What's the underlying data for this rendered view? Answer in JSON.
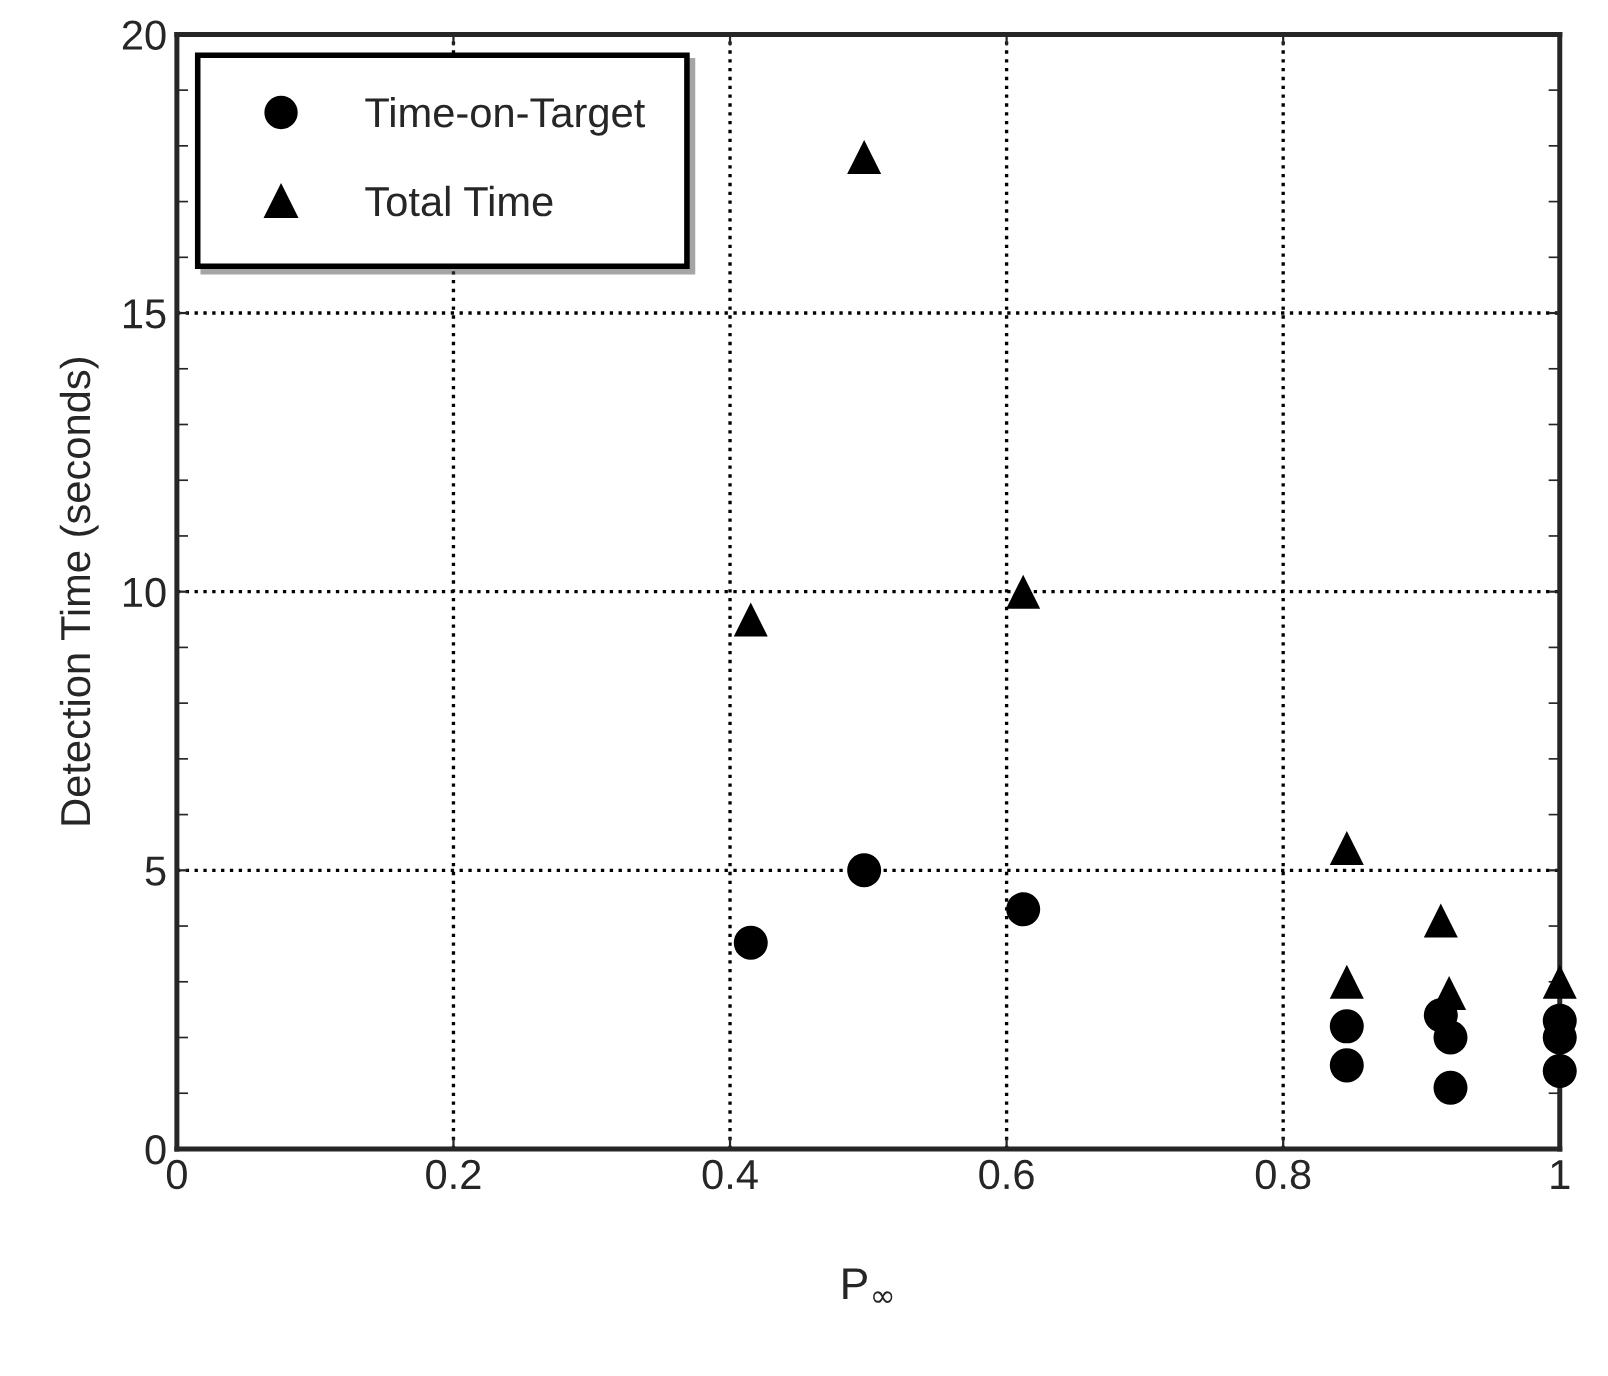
{
  "chart_data": {
    "type": "scatter",
    "xlabel": "P$_{∞}$",
    "ylabel": "Detection Time (seconds)",
    "series": [
      {
        "name": "Time-on-Target",
        "color": "#000000",
        "marker": "circle",
        "x": [
          0.415,
          0.497,
          0.612,
          0.846,
          0.846,
          0.914,
          0.921,
          0.921,
          1.0,
          1.0,
          1.0
        ],
        "values": [
          3.7,
          5.0,
          4.3,
          2.2,
          1.5,
          2.4,
          2.0,
          1.1,
          2.3,
          2.0,
          1.4
        ]
      },
      {
        "name": "Total Time",
        "color": "#000000",
        "marker": "triangle",
        "x": [
          0.415,
          0.497,
          0.612,
          0.846,
          0.846,
          0.914,
          0.92,
          1.0
        ],
        "values": [
          9.5,
          17.8,
          10.0,
          5.4,
          3.0,
          4.1,
          2.8,
          3.0
        ]
      }
    ],
    "xlim": [
      0,
      1
    ],
    "xticks": [
      0,
      0.2,
      0.4,
      0.6,
      0.8,
      1
    ],
    "ylim": [
      0,
      20
    ],
    "yticks": [
      0,
      5,
      10,
      15,
      20
    ],
    "grid": true,
    "legend": "top left"
  }
}
